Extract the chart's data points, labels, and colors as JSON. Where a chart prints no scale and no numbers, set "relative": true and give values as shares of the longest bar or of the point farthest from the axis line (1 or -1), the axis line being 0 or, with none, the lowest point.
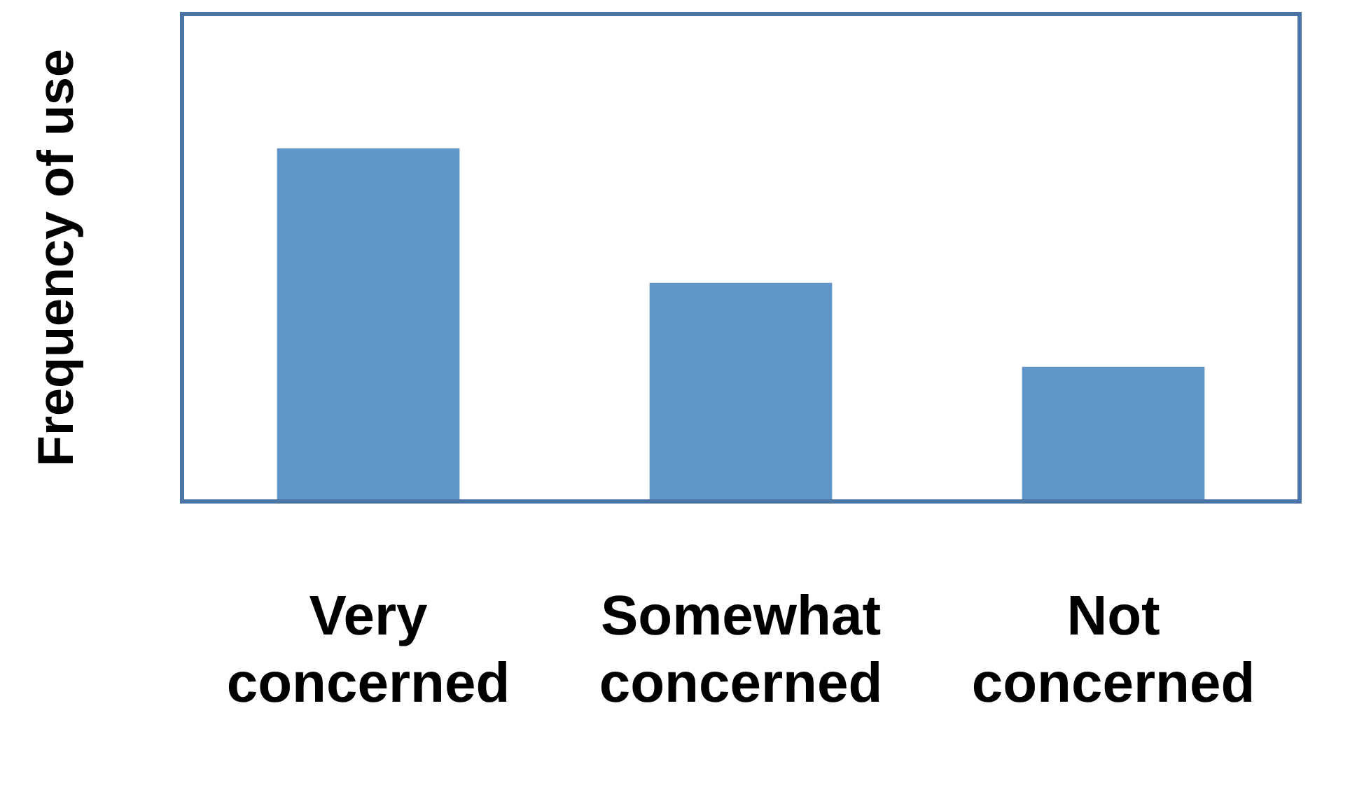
{
  "chart_data": {
    "type": "bar",
    "ylabel": "Frequency of use",
    "categories": [
      "Very concerned",
      "Somewhat concerned",
      "Not concerned"
    ],
    "values": [
      1,
      0.619,
      0.381
    ],
    "color": "#6096c8",
    "relative": true,
    "grid": false,
    "legend": false
  }
}
